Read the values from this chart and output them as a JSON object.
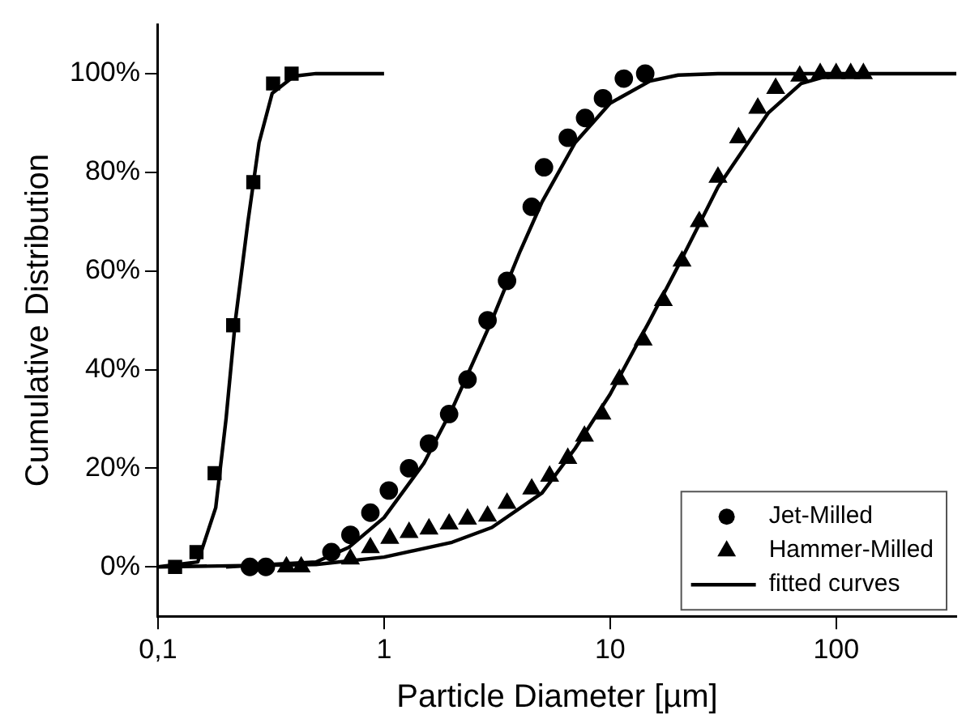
{
  "chart_data": {
    "type": "scatter",
    "xlabel": "Particle Diameter [µm]",
    "ylabel": "Cumulative Distribution",
    "log": "x",
    "xlim": [
      0.1,
      340
    ],
    "xticks": [
      {
        "value": 0.1,
        "label": "0,1"
      },
      1,
      10,
      100
    ],
    "ylim": [
      -10,
      110
    ],
    "yticks": [
      {
        "value": 0,
        "label": "0%"
      },
      {
        "value": 20,
        "label": "20%"
      },
      {
        "value": 40,
        "label": "40%"
      },
      {
        "value": 60,
        "label": "60%"
      },
      {
        "value": 80,
        "label": "80%"
      },
      {
        "value": 100,
        "label": "100%"
      }
    ],
    "grid": false,
    "legend": "bottom right",
    "series": [
      {
        "color": "#000000",
        "marker": "square",
        "x": [
          0.119,
          0.148,
          0.178,
          0.215,
          0.264,
          0.323,
          0.39
        ],
        "values": [
          0,
          3,
          19,
          49,
          78,
          98,
          100
        ]
      },
      {
        "name": "Jet-Milled",
        "color": "#000000",
        "marker": "circle",
        "x": [
          0.255,
          0.3,
          0.585,
          0.71,
          0.87,
          1.05,
          1.29,
          1.58,
          1.94,
          2.34,
          2.87,
          3.5,
          4.5,
          5.1,
          6.5,
          7.75,
          9.3,
          11.5,
          14.3
        ],
        "values": [
          0,
          0,
          3,
          6.5,
          11,
          15.5,
          20,
          25,
          31,
          38,
          50,
          58,
          73,
          81,
          87,
          91,
          95,
          99,
          100
        ]
      },
      {
        "name": "Hammer-Milled",
        "color": "#000000",
        "marker": "triangle",
        "x": [
          0.37,
          0.43,
          0.71,
          0.87,
          1.06,
          1.29,
          1.58,
          1.94,
          2.34,
          2.87,
          3.5,
          4.5,
          5.4,
          6.5,
          7.7,
          9.2,
          11,
          14,
          17.2,
          20.8,
          24.8,
          30,
          37,
          45,
          54,
          69,
          85,
          100,
          116,
          132
        ],
        "values": [
          0,
          0,
          1.6,
          3.9,
          5.8,
          7,
          7.7,
          8.7,
          9.7,
          10.3,
          12.9,
          15.8,
          18.4,
          22,
          26.5,
          31,
          38,
          46,
          54,
          62,
          70,
          79,
          87,
          93,
          97,
          99.5,
          100,
          100,
          100,
          100
        ]
      },
      {
        "name": "fitted curves",
        "type": "line",
        "color": "#000000",
        "marker": "none",
        "line_style": "solid",
        "x": [
          0.1,
          0.15,
          0.18,
          0.2,
          0.22,
          0.25,
          0.28,
          0.32,
          0.4,
          0.5,
          1,
          null,
          0.2,
          0.5,
          0.7,
          1,
          1.5,
          2,
          3,
          4,
          5,
          7,
          10,
          15,
          20,
          30,
          200,
          null,
          0.1,
          0.5,
          1,
          2,
          3,
          5,
          7,
          10,
          15,
          20,
          30,
          50,
          70,
          100,
          340
        ],
        "values": [
          0,
          1,
          12,
          30,
          50,
          70,
          86,
          96,
          99.5,
          100,
          100,
          null,
          0,
          1,
          4,
          10,
          21,
          32,
          50,
          64,
          74,
          86,
          94,
          98.5,
          99.7,
          100,
          100,
          null,
          0,
          0.5,
          2,
          5,
          8,
          15,
          24,
          35,
          50,
          61,
          77,
          92,
          98,
          100,
          100
        ]
      }
    ]
  }
}
